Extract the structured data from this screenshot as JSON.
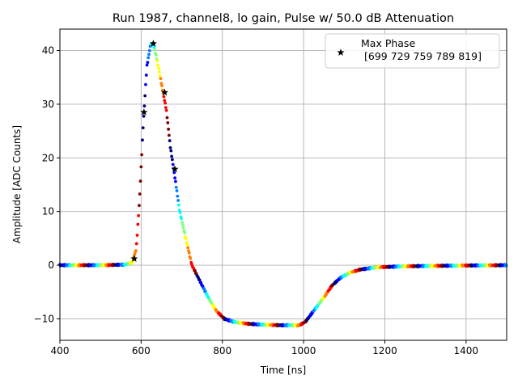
{
  "chart_data": {
    "type": "scatter",
    "title": "Run 1987, channel8, lo gain, Pulse w/ 50.0 dB Attenuation",
    "xlabel": "Time [ns]",
    "ylabel": "Amplitude [ADC Counts]",
    "xlim": [
      400,
      1500
    ],
    "ylim": [
      -14,
      44
    ],
    "xticks": [
      400,
      600,
      800,
      1000,
      1200,
      1400
    ],
    "yticks": [
      -10,
      0,
      10,
      20,
      30,
      40
    ],
    "grid": true,
    "legend": {
      "placement": "top-right",
      "label_line1": "Max Phase",
      "label_line2": "[699 729 759 789 819]"
    },
    "colormap": [
      "#00007f",
      "#0000ff",
      "#007fff",
      "#00ffff",
      "#7fff7f",
      "#ffff00",
      "#ff7f00",
      "#ff0000",
      "#7f0000"
    ],
    "waveform_points": [
      [
        400,
        0
      ],
      [
        500,
        0
      ],
      [
        560,
        0.1
      ],
      [
        578,
        0.5
      ],
      [
        588,
        3
      ],
      [
        596,
        12
      ],
      [
        605,
        26
      ],
      [
        614,
        37
      ],
      [
        623,
        41
      ],
      [
        630,
        41.3
      ],
      [
        640,
        38
      ],
      [
        652,
        33
      ],
      [
        662,
        29
      ],
      [
        672,
        22
      ],
      [
        682,
        17
      ],
      [
        695,
        10
      ],
      [
        710,
        5
      ],
      [
        725,
        0
      ],
      [
        745,
        -3
      ],
      [
        765,
        -6
      ],
      [
        785,
        -8.5
      ],
      [
        805,
        -10
      ],
      [
        830,
        -10.6
      ],
      [
        860,
        -10.9
      ],
      [
        900,
        -11.1
      ],
      [
        950,
        -11.2
      ],
      [
        990,
        -11.2
      ],
      [
        1005,
        -10.5
      ],
      [
        1030,
        -8
      ],
      [
        1050,
        -6
      ],
      [
        1070,
        -3.8
      ],
      [
        1090,
        -2.4
      ],
      [
        1110,
        -1.5
      ],
      [
        1140,
        -0.8
      ],
      [
        1180,
        -0.4
      ],
      [
        1250,
        -0.2
      ],
      [
        1350,
        -0.1
      ],
      [
        1500,
        0
      ]
    ],
    "max_phase_markers": [
      {
        "x": 583,
        "y": 1.2
      },
      {
        "x": 607,
        "y": 28.5
      },
      {
        "x": 630,
        "y": 41.3
      },
      {
        "x": 658,
        "y": 32.2
      },
      {
        "x": 683,
        "y": 17.9
      }
    ]
  }
}
